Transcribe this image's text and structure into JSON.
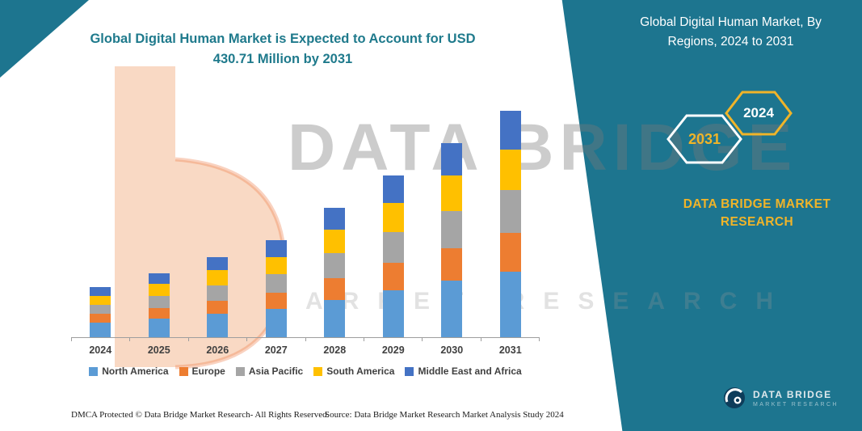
{
  "header": {
    "left_title": "Global Digital Human Market is Expected to Account for USD 430.71 Million by 2031",
    "right_title": "Global Digital Human Market, By Regions, 2024 to 2031"
  },
  "badges": {
    "hex_2031": "2031",
    "hex_2024": "2024"
  },
  "brand_block": {
    "name": "DATA BRIDGE MARKET RESEARCH"
  },
  "watermark": {
    "main": "DATA BRIDGE",
    "sub": "MARKET RESEARCH"
  },
  "footer": {
    "dmca": "DMCA Protected © Data Bridge Market Research-  All Rights Reserved.",
    "source": "Source: Data Bridge Market Research  Market Analysis Study 2024"
  },
  "bottom_logo": {
    "name": "DATA BRIDGE",
    "subtitle": "MARKET RESEARCH"
  },
  "colors": {
    "teal_panel": "#1D758F",
    "accent_gold": "#F0B429",
    "title_teal": "#1F7A8C"
  },
  "chart_data": {
    "type": "bar",
    "stacked": true,
    "title": "Global Digital Human Market is Expected to Account for USD 430.71 Million by 2031",
    "unit": "USD Million",
    "categories": [
      "2024",
      "2025",
      "2026",
      "2027",
      "2028",
      "2029",
      "2030",
      "2031"
    ],
    "series": [
      {
        "name": "North America",
        "color": "#5B9BD5",
        "values": [
          28,
          35,
          44,
          54,
          71,
          89,
          107,
          125
        ]
      },
      {
        "name": "Europe",
        "color": "#ED7D31",
        "values": [
          16,
          21,
          26,
          31,
          42,
          52,
          63,
          73
        ]
      },
      {
        "name": "Asia Pacific",
        "color": "#A5A5A5",
        "values": [
          18,
          23,
          29,
          35,
          47,
          59,
          70,
          82
        ]
      },
      {
        "name": "South America",
        "color": "#FFC000",
        "values": [
          17,
          22,
          28,
          33,
          44,
          55,
          67,
          77
        ]
      },
      {
        "name": "Middle East and Africa",
        "color": "#4472C4",
        "values": [
          17,
          21,
          26,
          32,
          42,
          53,
          63,
          73.71
        ]
      }
    ],
    "totals_estimated": [
      96,
      122,
      153,
      185,
      246,
      308,
      370,
      430.71
    ],
    "ylim": [
      0,
      450
    ],
    "grid": false,
    "legend_position": "bottom",
    "xlabel": "",
    "ylabel": ""
  }
}
